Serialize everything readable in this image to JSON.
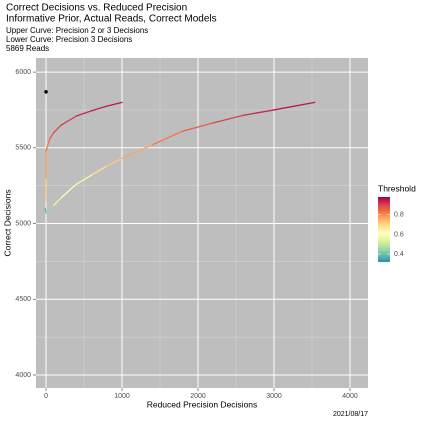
{
  "chart_data": {
    "type": "line",
    "title": [
      "Correct Decisions vs. Reduced Precision",
      "Informative Prior, Actual Reads, Correct Models"
    ],
    "subtitle": [
      "Upper Curve: Precision 2 or 3 Decisions",
      "Lower Curve: Precision 3 Decisions",
      "5869 Reads"
    ],
    "x_label": "Reduced Precision Decisions",
    "y_label": "Correct Decisions",
    "caption": "2021/08/17",
    "xlim": [
      -132,
      4237
    ],
    "ylim": [
      3914,
      6093
    ],
    "xticks": [
      0,
      1000,
      2000,
      3000,
      4000
    ],
    "yticks": [
      4000,
      4500,
      5000,
      5500,
      6000
    ],
    "x_minor_ticks": [
      500,
      1500,
      2500,
      3500
    ],
    "y_minor_ticks": [
      4250,
      4750,
      5250,
      5750
    ],
    "grid": true,
    "color_scale": {
      "title": "Threshold",
      "lim": [
        0.32,
        0.98
      ],
      "ticks": [
        0.4,
        0.6,
        0.8
      ],
      "colors": [
        "#3288bd",
        "#66c2a5",
        "#abdda4",
        "#e6f598",
        "#ffffbf",
        "#fee08b",
        "#fdae61",
        "#f46d43",
        "#d53e4f",
        "#9e0142"
      ]
    },
    "series": [
      {
        "x": [
          0,
          0,
          0,
          50,
          100,
          200,
          400,
          600,
          800,
          1000
        ],
        "values": [
          5150,
          5300,
          5480,
          5560,
          5600,
          5650,
          5710,
          5745,
          5775,
          5800
        ],
        "threshold": [
          0.62,
          0.7,
          0.78,
          0.83,
          0.86,
          0.89,
          0.91,
          0.93,
          0.94,
          0.95
        ]
      },
      {
        "x": [
          -10,
          0,
          100,
          200,
          400,
          600,
          800,
          1000,
          1400,
          1800,
          2200,
          2600,
          3000,
          3535
        ],
        "values": [
          5100,
          5070,
          5120,
          5170,
          5260,
          5320,
          5380,
          5430,
          5520,
          5610,
          5665,
          5715,
          5750,
          5800
        ],
        "threshold": [
          0.36,
          0.38,
          0.45,
          0.55,
          0.6,
          0.64,
          0.68,
          0.72,
          0.77,
          0.82,
          0.86,
          0.9,
          0.93,
          0.95
        ]
      }
    ],
    "points": {
      "x": [
        0
      ],
      "values": [
        5870
      ],
      "color": "#000000"
    }
  }
}
